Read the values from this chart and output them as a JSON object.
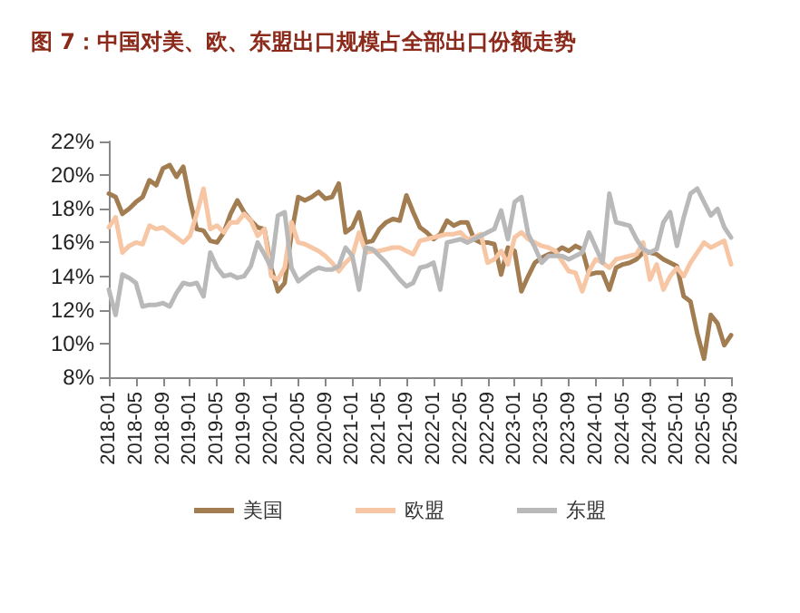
{
  "chart_data": {
    "type": "line",
    "title": "图 7：中国对美、欧、东盟出口规模占全部出口份额走势",
    "categories": [
      "2018-01",
      null,
      null,
      null,
      "2018-05",
      null,
      null,
      null,
      "2018-09",
      null,
      null,
      null,
      "2019-01",
      null,
      null,
      null,
      "2019-05",
      null,
      null,
      null,
      "2019-09",
      null,
      null,
      null,
      "2020-01",
      null,
      null,
      null,
      "2020-05",
      null,
      null,
      null,
      "2020-09",
      null,
      null,
      null,
      "2021-01",
      null,
      null,
      null,
      "2021-05",
      null,
      null,
      null,
      "2021-09",
      null,
      null,
      null,
      "2022-01",
      null,
      null,
      null,
      "2022-05",
      null,
      null,
      null,
      "2022-09",
      null,
      null,
      null,
      "2023-01",
      null,
      null,
      null,
      "2023-05",
      null,
      null,
      null,
      "2023-09",
      null,
      null,
      null,
      "2024-01",
      null,
      null,
      null,
      "2024-05",
      null,
      null,
      null,
      "2024-09",
      null,
      null,
      null,
      "2025-01",
      null,
      null,
      null,
      "2025-05",
      null,
      null,
      null,
      "2025-09"
    ],
    "series": [
      {
        "name": "美国",
        "color": "#a37d52",
        "values": [
          18.9,
          18.7,
          17.7,
          18.0,
          18.4,
          18.7,
          19.7,
          19.4,
          20.4,
          20.6,
          19.9,
          20.5,
          18.5,
          16.8,
          16.7,
          16.1,
          16.0,
          16.6,
          17.7,
          18.5,
          17.8,
          17.3,
          16.9,
          16.8,
          14.5,
          13.1,
          13.6,
          16.5,
          18.7,
          18.5,
          18.7,
          19.0,
          18.6,
          18.7,
          19.5,
          16.6,
          16.9,
          17.8,
          16.0,
          16.1,
          16.8,
          17.2,
          17.4,
          17.3,
          18.8,
          17.8,
          16.9,
          16.6,
          16.2,
          16.5,
          17.3,
          17.0,
          17.2,
          17.2,
          16.2,
          16.0,
          16.0,
          15.9,
          14.1,
          15.7,
          15.5,
          13.1,
          14.0,
          14.8,
          15.1,
          15.3,
          15.4,
          15.7,
          15.5,
          15.8,
          15.6,
          14.1,
          14.2,
          14.2,
          13.2,
          14.5,
          14.7,
          14.8,
          15.0,
          15.4,
          15.4,
          15.3,
          15.0,
          14.8,
          14.6,
          12.8,
          12.5,
          10.6,
          9.1,
          11.7,
          11.2,
          9.9,
          10.5
        ]
      },
      {
        "name": "欧盟",
        "color": "#f7c6a5",
        "values": [
          16.9,
          17.5,
          15.4,
          15.8,
          16.0,
          15.9,
          17.0,
          16.8,
          16.9,
          16.6,
          16.3,
          16.0,
          16.4,
          17.7,
          19.2,
          16.8,
          17.0,
          16.6,
          17.2,
          17.2,
          17.7,
          17.3,
          16.4,
          16.8,
          14.0,
          13.8,
          14.5,
          17.2,
          16.0,
          15.9,
          15.7,
          15.5,
          15.2,
          14.8,
          14.3,
          14.8,
          15.2,
          16.6,
          15.4,
          15.5,
          15.5,
          15.6,
          15.7,
          15.7,
          15.5,
          15.3,
          16.1,
          16.2,
          16.3,
          16.4,
          16.5,
          16.5,
          16.6,
          16.2,
          16.3,
          16.5,
          14.8,
          15.0,
          15.5,
          14.7,
          16.3,
          16.6,
          16.2,
          16.0,
          15.8,
          15.7,
          15.5,
          14.9,
          14.3,
          14.2,
          13.1,
          14.3,
          15.0,
          14.8,
          14.5,
          15.0,
          15.1,
          15.2,
          15.3,
          16.0,
          13.8,
          14.7,
          13.2,
          14.0,
          14.5,
          14.0,
          14.8,
          15.4,
          16.0,
          15.7,
          15.9,
          16.1,
          14.7
        ]
      },
      {
        "name": "东盟",
        "color": "#b9b9b9",
        "values": [
          13.2,
          11.7,
          14.1,
          13.9,
          13.6,
          12.2,
          12.3,
          12.3,
          12.4,
          12.2,
          13.0,
          13.6,
          13.5,
          13.6,
          12.8,
          15.4,
          14.5,
          14.0,
          14.1,
          13.9,
          14.0,
          14.6,
          16.0,
          15.3,
          14.5,
          17.6,
          17.8,
          14.5,
          13.7,
          14.0,
          14.3,
          14.5,
          14.4,
          14.4,
          14.6,
          15.7,
          15.2,
          13.2,
          15.7,
          15.6,
          15.2,
          14.8,
          14.3,
          13.8,
          13.4,
          13.6,
          14.5,
          14.6,
          14.8,
          13.2,
          16.0,
          16.1,
          16.2,
          16.0,
          16.2,
          16.4,
          16.6,
          16.8,
          17.9,
          16.2,
          18.4,
          18.7,
          16.5,
          15.7,
          14.8,
          15.2,
          15.2,
          15.2,
          15.0,
          15.2,
          15.4,
          16.6,
          15.7,
          14.8,
          18.9,
          17.2,
          17.1,
          17.0,
          16.2,
          15.6,
          15.4,
          15.6,
          17.2,
          17.8,
          15.8,
          17.5,
          18.9,
          19.2,
          18.4,
          17.6,
          18.0,
          16.9,
          16.3
        ]
      }
    ],
    "ylim": [
      8,
      22
    ],
    "yticks": [
      {
        "value": 8,
        "label": "8%"
      },
      {
        "value": 10,
        "label": "10%"
      },
      {
        "value": 12,
        "label": "12%"
      },
      {
        "value": 14,
        "label": "14%"
      },
      {
        "value": 16,
        "label": "16%"
      },
      {
        "value": 18,
        "label": "18%"
      },
      {
        "value": 20,
        "label": "20%"
      },
      {
        "value": 22,
        "label": "22%"
      }
    ],
    "grid": false,
    "legend": "bottom",
    "marker": "none",
    "line_style": "solid"
  }
}
